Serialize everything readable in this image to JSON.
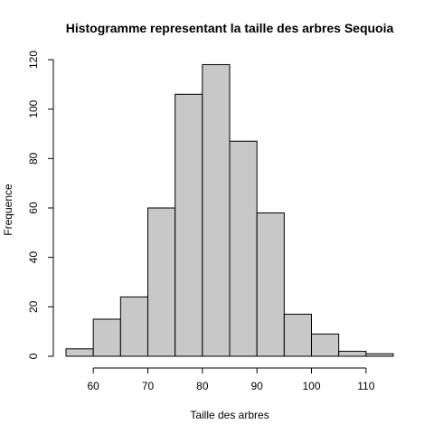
{
  "chart_data": {
    "type": "bar",
    "title": "Histogramme representant la taille des arbres Sequoia",
    "xlabel": "Taille des arbres",
    "ylabel": "Frequence",
    "bins": [
      {
        "start": 55,
        "end": 60,
        "count": 3
      },
      {
        "start": 60,
        "end": 65,
        "count": 15
      },
      {
        "start": 65,
        "end": 70,
        "count": 24
      },
      {
        "start": 70,
        "end": 75,
        "count": 60
      },
      {
        "start": 75,
        "end": 80,
        "count": 106
      },
      {
        "start": 80,
        "end": 85,
        "count": 118
      },
      {
        "start": 85,
        "end": 90,
        "count": 87
      },
      {
        "start": 90,
        "end": 95,
        "count": 58
      },
      {
        "start": 95,
        "end": 100,
        "count": 17
      },
      {
        "start": 100,
        "end": 105,
        "count": 9
      },
      {
        "start": 105,
        "end": 110,
        "count": 2
      },
      {
        "start": 110,
        "end": 115,
        "count": 1
      }
    ],
    "xlim": [
      55,
      115
    ],
    "ylim": [
      0,
      120
    ],
    "x_ticks": [
      60,
      70,
      80,
      90,
      100,
      110
    ],
    "y_ticks": [
      0,
      20,
      40,
      60,
      80,
      100,
      120
    ],
    "bar_color": "#c8c8c8",
    "edge_color": "#000000",
    "grid": false,
    "legend": "none"
  }
}
